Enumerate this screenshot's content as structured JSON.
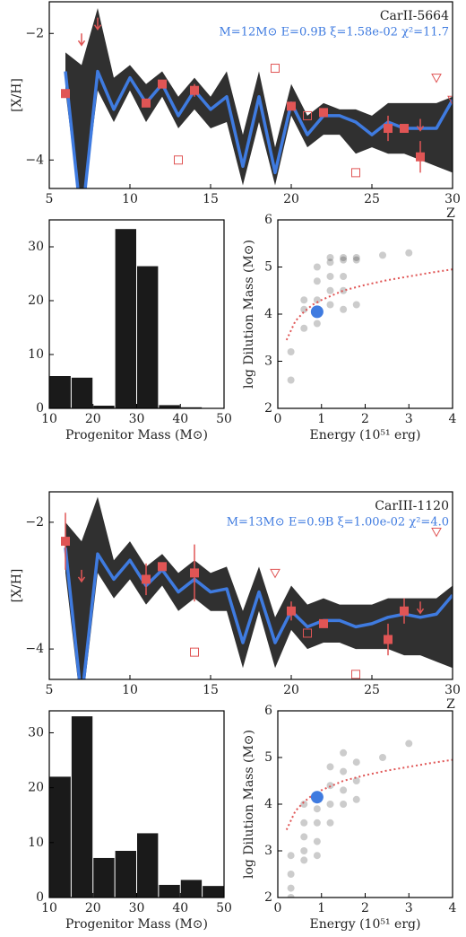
{
  "chart_data": [
    {
      "type": "abundance",
      "title": "CarII-5664",
      "subtitle": "M=12M⊙ E=0.9B ξ=1.58e-02 χ²=11.7",
      "x_label": "Z",
      "y_label": "[X/H]",
      "xlim": [
        5,
        30
      ],
      "ylim": [
        -4.45,
        -1.5
      ],
      "xticks": [
        5,
        10,
        15,
        20,
        25,
        30
      ],
      "yticks": [
        {
          "value": -2,
          "label": "−2"
        },
        {
          "value": -4,
          "label": "−4"
        }
      ],
      "x": [
        6,
        7,
        8,
        9,
        10,
        11,
        12,
        13,
        14,
        15,
        16,
        17,
        18,
        19,
        20,
        21,
        22,
        23,
        24,
        25,
        26,
        27,
        28,
        29,
        30
      ],
      "model": {
        "color": "#3f7be0",
        "values": [
          -2.6,
          -5,
          -2.6,
          -3.2,
          -2.7,
          -3.1,
          -2.8,
          -3.3,
          -2.9,
          -3.2,
          -3.0,
          -4.1,
          -3.0,
          -4.2,
          -3.1,
          -3.6,
          -3.3,
          -3.3,
          -3.4,
          -3.6,
          -3.4,
          -3.5,
          -3.5,
          -3.5,
          -3.05
        ]
      },
      "model_range": {
        "color": "#1a1a1a",
        "high": [
          -2.3,
          -2.5,
          -1.6,
          -2.7,
          -2.5,
          -2.8,
          -2.6,
          -3.0,
          -2.7,
          -3.0,
          -2.6,
          -3.6,
          -2.6,
          -3.8,
          -2.8,
          -3.3,
          -3.1,
          -3.2,
          -3.2,
          -3.3,
          -3.1,
          -3.1,
          -3.1,
          -3.1,
          -3.0
        ],
        "low": [
          -2.9,
          -5,
          -2.9,
          -3.4,
          -2.9,
          -3.4,
          -3.0,
          -3.5,
          -3.2,
          -3.5,
          -3.4,
          -4.4,
          -3.4,
          -4.4,
          -3.3,
          -3.8,
          -3.6,
          -3.6,
          -3.9,
          -3.8,
          -3.9,
          -3.9,
          -4.0,
          -4.1,
          -4.2
        ]
      },
      "observed": {
        "color": "#e05555",
        "x": [
          6,
          11,
          12,
          14,
          20,
          22,
          26,
          27,
          28
        ],
        "values": [
          -2.95,
          -3.1,
          -2.8,
          -2.9,
          -3.15,
          -3.25,
          -3.5,
          -3.5,
          -3.95
        ],
        "errors": [
          null,
          null,
          null,
          0.1,
          null,
          null,
          0.2,
          null,
          0.25
        ]
      },
      "upper_limits": {
        "x": [
          7,
          8,
          28
        ],
        "values": [
          -2.1,
          -1.85,
          -3.45
        ]
      },
      "other_data": {
        "x": [
          13,
          19,
          21,
          24
        ],
        "values": [
          -4.0,
          -2.55,
          -3.3,
          -4.2
        ]
      },
      "other_limits": {
        "x": [
          29,
          30
        ],
        "values": [
          -2.7,
          -3.05
        ]
      }
    },
    {
      "type": "histogram",
      "x_label": "Progenitor Mass (M⊙)",
      "xlim": [
        10,
        50
      ],
      "ylim": [
        0,
        35
      ],
      "xticks": [
        10,
        20,
        30,
        40,
        50
      ],
      "yticks": [
        0,
        10,
        20,
        30
      ],
      "color": "#1a1a1a",
      "bins": [
        10,
        15,
        20,
        25,
        30,
        35,
        40,
        45,
        50
      ],
      "values": [
        6,
        5.7,
        0.5,
        33.3,
        26.4,
        0.6,
        0.2,
        0
      ]
    },
    {
      "type": "scatter",
      "x_label": "Energy (10⁵¹ erg)",
      "y_label": "log Dilution Mass (M⊙)",
      "xlim": [
        0,
        4
      ],
      "ylim": [
        2,
        6
      ],
      "xticks": [
        0,
        1,
        2,
        3,
        4
      ],
      "yticks": [
        2,
        3,
        4,
        5,
        6
      ],
      "points": {
        "color": "#000000",
        "x": [
          1.2,
          1.5,
          1.8,
          1.5,
          1.8,
          2.4,
          3.0,
          1.2,
          0.9,
          1.2,
          0.6,
          0.9,
          1.2,
          1.5,
          1.8,
          0.6,
          0.9,
          0.3,
          0.6,
          1.5,
          0.3,
          1.5,
          0.9,
          1.2
        ],
        "values": [
          5.2,
          5.2,
          5.2,
          5.15,
          5.15,
          5.25,
          5.3,
          5.1,
          4.7,
          4.5,
          4.3,
          4.3,
          4.2,
          4.5,
          4.2,
          4.1,
          3.8,
          3.2,
          3.7,
          4.1,
          2.6,
          4.8,
          5.0,
          4.8
        ]
      },
      "best_fit": {
        "color": "#3f7be0",
        "x": [
          0.9
        ],
        "values": [
          4.05
        ]
      },
      "curve": {
        "color": "#e05555",
        "x": [
          0.2,
          0.4,
          0.6,
          0.8,
          1,
          1.5,
          2,
          2.5,
          3,
          3.5,
          4
        ],
        "values": [
          3.45,
          3.85,
          4.05,
          4.2,
          4.3,
          4.5,
          4.62,
          4.72,
          4.8,
          4.88,
          4.95
        ]
      }
    },
    {
      "type": "abundance",
      "title": "CarIII-1120",
      "subtitle": "M=13M⊙ E=0.9B ξ=1.00e-02 χ²=4.0",
      "x_label": "Z",
      "y_label": "[X/H]",
      "xlim": [
        5,
        30
      ],
      "ylim": [
        -4.48,
        -1.52
      ],
      "xticks": [
        5,
        10,
        15,
        20,
        25,
        30
      ],
      "yticks": [
        {
          "value": -2,
          "label": "−2"
        },
        {
          "value": -4,
          "label": "−4"
        }
      ],
      "x": [
        6,
        7,
        8,
        9,
        10,
        11,
        12,
        13,
        14,
        15,
        16,
        17,
        18,
        19,
        20,
        21,
        22,
        23,
        24,
        25,
        26,
        27,
        28,
        29,
        30
      ],
      "model": {
        "color": "#3f7be0",
        "values": [
          -2.4,
          -4.8,
          -2.5,
          -2.9,
          -2.6,
          -3.0,
          -2.75,
          -3.1,
          -2.9,
          -3.1,
          -3.05,
          -3.9,
          -3.1,
          -3.9,
          -3.4,
          -3.65,
          -3.55,
          -3.55,
          -3.65,
          -3.6,
          -3.5,
          -3.45,
          -3.5,
          -3.45,
          -3.15
        ]
      },
      "model_range": {
        "color": "#1a1a1a",
        "high": [
          -2.0,
          -2.3,
          -1.6,
          -2.6,
          -2.3,
          -2.7,
          -2.5,
          -2.8,
          -2.6,
          -2.8,
          -2.7,
          -3.4,
          -2.7,
          -3.5,
          -3.0,
          -3.3,
          -3.2,
          -3.3,
          -3.3,
          -3.3,
          -3.2,
          -3.2,
          -3.2,
          -3.2,
          -3.0
        ],
        "low": [
          -2.8,
          -5,
          -2.8,
          -3.2,
          -2.9,
          -3.3,
          -3.0,
          -3.4,
          -3.2,
          -3.4,
          -3.4,
          -4.3,
          -3.4,
          -4.3,
          -3.7,
          -4.0,
          -3.9,
          -3.9,
          -4.0,
          -4.0,
          -4.0,
          -4.1,
          -4.1,
          -4.2,
          -4.3
        ]
      },
      "observed": {
        "color": "#e05555",
        "x": [
          6,
          11,
          12,
          14,
          20,
          22,
          26,
          27
        ],
        "values": [
          -2.3,
          -2.9,
          -2.7,
          -2.8,
          -3.4,
          -3.6,
          -3.85,
          -3.4
        ],
        "errors": [
          0.45,
          0.25,
          null,
          0.45,
          0.15,
          null,
          0.25,
          0.2
        ]
      },
      "upper_limits": {
        "x": [
          7,
          28
        ],
        "values": [
          -2.85,
          -3.35
        ]
      },
      "other_data": {
        "x": [
          14,
          21,
          24
        ],
        "values": [
          -4.05,
          -3.75,
          -4.4
        ]
      },
      "other_limits": {
        "x": [
          19,
          29
        ],
        "values": [
          -2.8,
          -2.15
        ]
      }
    },
    {
      "type": "histogram",
      "x_label": "Progenitor Mass (M⊙)",
      "xlim": [
        10,
        50
      ],
      "ylim": [
        0,
        34
      ],
      "xticks": [
        10,
        20,
        30,
        40,
        50
      ],
      "yticks": [
        0,
        10,
        20,
        30
      ],
      "color": "#1a1a1a",
      "bins": [
        10,
        15,
        20,
        25,
        30,
        35,
        40,
        45,
        50
      ],
      "values": [
        22,
        33,
        7.2,
        8.5,
        11.7,
        2.3,
        3.2,
        2.1
      ]
    },
    {
      "type": "scatter",
      "x_label": "Energy (10⁵¹ erg)",
      "y_label": "log Dilution Mass (M⊙)",
      "xlim": [
        0,
        4
      ],
      "ylim": [
        2,
        6
      ],
      "xticks": [
        0,
        1,
        2,
        3,
        4
      ],
      "yticks": [
        2,
        3,
        4,
        5,
        6
      ],
      "points": {
        "color": "#000000",
        "x": [
          0.3,
          0.3,
          0.3,
          0.6,
          0.6,
          0.6,
          0.6,
          0.9,
          0.9,
          0.9,
          0.9,
          1.2,
          1.2,
          1.2,
          1.2,
          1.5,
          1.5,
          1.5,
          1.5,
          1.8,
          1.8,
          3.0,
          0.3,
          0.6,
          1.8,
          2.4
        ],
        "values": [
          2.2,
          2.5,
          2.9,
          2.8,
          3.3,
          3.6,
          3.0,
          3.2,
          3.6,
          3.9,
          2.9,
          3.6,
          4.0,
          4.4,
          4.8,
          4.0,
          4.3,
          4.7,
          5.1,
          4.1,
          4.5,
          5.3,
          2.0,
          4.0,
          4.9,
          5.0
        ]
      },
      "best_fit": {
        "color": "#3f7be0",
        "x": [
          0.9
        ],
        "values": [
          4.15
        ]
      },
      "curve": {
        "color": "#e05555",
        "x": [
          0.2,
          0.4,
          0.6,
          0.8,
          1,
          1.5,
          2,
          2.5,
          3,
          3.5,
          4
        ],
        "values": [
          3.45,
          3.85,
          4.05,
          4.2,
          4.3,
          4.5,
          4.62,
          4.72,
          4.8,
          4.88,
          4.95
        ]
      }
    }
  ]
}
